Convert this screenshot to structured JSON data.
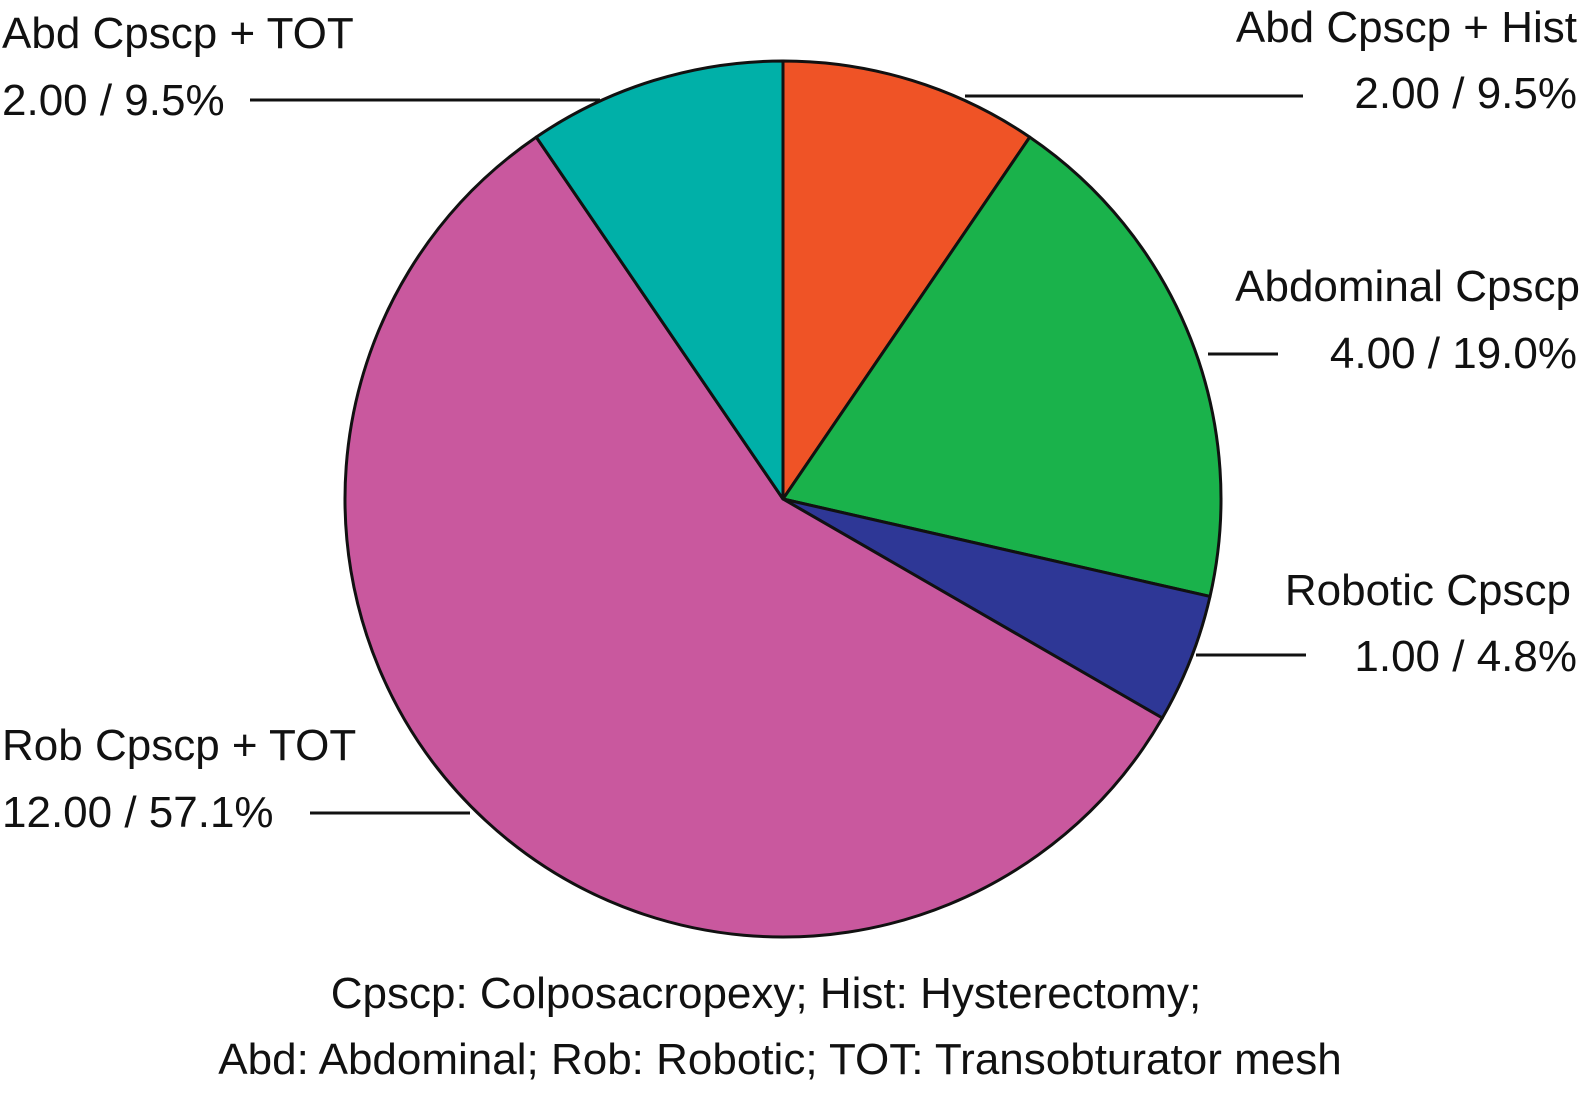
{
  "chart_data": {
    "type": "pie",
    "slices": [
      {
        "label": "Abd Cpscp + Hist",
        "value": 2.0,
        "percent": 9.5,
        "value_text": "2.00 / 9.5%",
        "color": "#ef5326"
      },
      {
        "label": "Abdominal Cpscp",
        "value": 4.0,
        "percent": 19.0,
        "value_text": "4.00 / 19.0%",
        "color": "#1ab24b"
      },
      {
        "label": "Robotic Cpscp",
        "value": 1.0,
        "percent": 4.8,
        "value_text": "1.00 / 4.8%",
        "color": "#2e3796"
      },
      {
        "label": "Rob Cpscp + TOT",
        "value": 12.0,
        "percent": 57.1,
        "value_text": "12.00 / 57.1%",
        "color": "#c9589e"
      },
      {
        "label": "Abd Cpscp + TOT",
        "value": 2.0,
        "percent": 9.5,
        "value_text": "2.00 / 9.5%",
        "color": "#00b0a8"
      }
    ],
    "footnote": [
      "Cpscp: Colposacropexy;  Hist: Hysterectomy;",
      "Abd: Abdominal;  Rob: Robotic; TOT: Transobturator mesh"
    ]
  }
}
